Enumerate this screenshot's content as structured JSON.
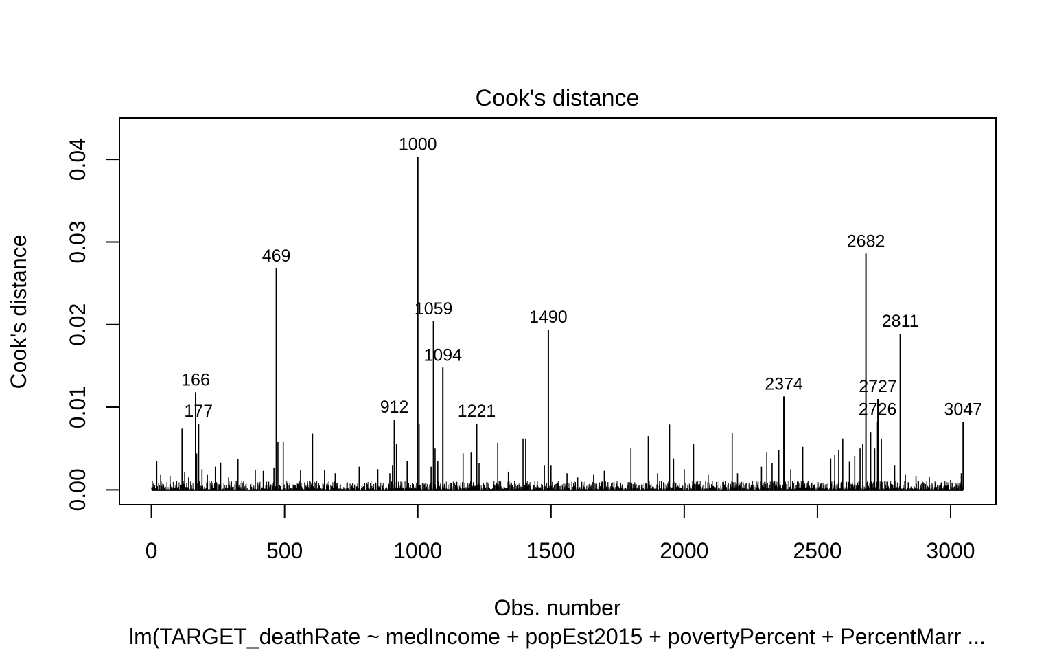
{
  "chart_data": {
    "type": "bar",
    "title": "Cook's distance",
    "xlabel": "Obs. number",
    "ylabel": "Cook's distance",
    "caption": "lm(TARGET_deathRate ~ medIncome + popEst2015 + povertyPercent + PercentMarr ...",
    "xlim": [
      -120,
      3170
    ],
    "ylim": [
      -0.0018,
      0.045
    ],
    "x_ticks": [
      0,
      500,
      1000,
      1500,
      2000,
      2500,
      3000
    ],
    "x_tick_labels": [
      "0",
      "500",
      "1000",
      "1500",
      "2000",
      "2500",
      "3000"
    ],
    "y_ticks": [
      0,
      0.01,
      0.02,
      0.03,
      0.04
    ],
    "y_tick_labels": [
      "0.00",
      "0.01",
      "0.02",
      "0.03",
      "0.04"
    ],
    "n_obs": 3047,
    "grid": false,
    "labeled_points": [
      {
        "label": "166",
        "x": 166,
        "y": 0.0118
      },
      {
        "label": "177",
        "x": 177,
        "y": 0.008
      },
      {
        "label": "469",
        "x": 469,
        "y": 0.0268
      },
      {
        "label": "912",
        "x": 912,
        "y": 0.0085
      },
      {
        "label": "1000",
        "x": 1000,
        "y": 0.0403
      },
      {
        "label": "1059",
        "x": 1059,
        "y": 0.0204
      },
      {
        "label": "1094",
        "x": 1094,
        "y": 0.0148
      },
      {
        "label": "1221",
        "x": 1221,
        "y": 0.008
      },
      {
        "label": "1490",
        "x": 1490,
        "y": 0.0194
      },
      {
        "label": "2374",
        "x": 2374,
        "y": 0.0113
      },
      {
        "label": "2682",
        "x": 2682,
        "y": 0.0286
      },
      {
        "label": "2726",
        "x": 2726,
        "y": 0.0082
      },
      {
        "label": "2727",
        "x": 2727,
        "y": 0.011
      },
      {
        "label": "2811",
        "x": 2811,
        "y": 0.0189
      },
      {
        "label": "3047",
        "x": 3047,
        "y": 0.0082
      }
    ],
    "other_spikes": [
      {
        "x": 20,
        "y": 0.0035
      },
      {
        "x": 35,
        "y": 0.0018
      },
      {
        "x": 70,
        "y": 0.0017
      },
      {
        "x": 115,
        "y": 0.0074
      },
      {
        "x": 125,
        "y": 0.0022
      },
      {
        "x": 140,
        "y": 0.0015
      },
      {
        "x": 170,
        "y": 0.0044
      },
      {
        "x": 190,
        "y": 0.0025
      },
      {
        "x": 210,
        "y": 0.0018
      },
      {
        "x": 240,
        "y": 0.0028
      },
      {
        "x": 260,
        "y": 0.0033
      },
      {
        "x": 290,
        "y": 0.0015
      },
      {
        "x": 325,
        "y": 0.0037
      },
      {
        "x": 390,
        "y": 0.0024
      },
      {
        "x": 420,
        "y": 0.0023
      },
      {
        "x": 460,
        "y": 0.0027
      },
      {
        "x": 475,
        "y": 0.0058
      },
      {
        "x": 495,
        "y": 0.0058
      },
      {
        "x": 560,
        "y": 0.0024
      },
      {
        "x": 605,
        "y": 0.0068
      },
      {
        "x": 650,
        "y": 0.0024
      },
      {
        "x": 690,
        "y": 0.002
      },
      {
        "x": 780,
        "y": 0.0028
      },
      {
        "x": 850,
        "y": 0.0025
      },
      {
        "x": 895,
        "y": 0.002
      },
      {
        "x": 905,
        "y": 0.003
      },
      {
        "x": 920,
        "y": 0.0056
      },
      {
        "x": 960,
        "y": 0.0035
      },
      {
        "x": 1005,
        "y": 0.008
      },
      {
        "x": 1050,
        "y": 0.0028
      },
      {
        "x": 1065,
        "y": 0.005
      },
      {
        "x": 1075,
        "y": 0.0035
      },
      {
        "x": 1170,
        "y": 0.0044
      },
      {
        "x": 1200,
        "y": 0.0045
      },
      {
        "x": 1230,
        "y": 0.0032
      },
      {
        "x": 1300,
        "y": 0.0057
      },
      {
        "x": 1340,
        "y": 0.0022
      },
      {
        "x": 1395,
        "y": 0.0062
      },
      {
        "x": 1405,
        "y": 0.0062
      },
      {
        "x": 1475,
        "y": 0.003
      },
      {
        "x": 1500,
        "y": 0.003
      },
      {
        "x": 1560,
        "y": 0.002
      },
      {
        "x": 1600,
        "y": 0.0015
      },
      {
        "x": 1660,
        "y": 0.0018
      },
      {
        "x": 1700,
        "y": 0.0023
      },
      {
        "x": 1800,
        "y": 0.0051
      },
      {
        "x": 1865,
        "y": 0.0065
      },
      {
        "x": 1900,
        "y": 0.002
      },
      {
        "x": 1945,
        "y": 0.0079
      },
      {
        "x": 1960,
        "y": 0.0038
      },
      {
        "x": 2000,
        "y": 0.0025
      },
      {
        "x": 2035,
        "y": 0.0056
      },
      {
        "x": 2090,
        "y": 0.0018
      },
      {
        "x": 2180,
        "y": 0.0069
      },
      {
        "x": 2200,
        "y": 0.002
      },
      {
        "x": 2290,
        "y": 0.0028
      },
      {
        "x": 2310,
        "y": 0.0045
      },
      {
        "x": 2330,
        "y": 0.0032
      },
      {
        "x": 2355,
        "y": 0.0048
      },
      {
        "x": 2400,
        "y": 0.0025
      },
      {
        "x": 2445,
        "y": 0.0052
      },
      {
        "x": 2550,
        "y": 0.0038
      },
      {
        "x": 2565,
        "y": 0.0042
      },
      {
        "x": 2580,
        "y": 0.0048
      },
      {
        "x": 2595,
        "y": 0.0062
      },
      {
        "x": 2620,
        "y": 0.0034
      },
      {
        "x": 2640,
        "y": 0.0041
      },
      {
        "x": 2660,
        "y": 0.005
      },
      {
        "x": 2670,
        "y": 0.0056
      },
      {
        "x": 2700,
        "y": 0.007
      },
      {
        "x": 2715,
        "y": 0.005
      },
      {
        "x": 2740,
        "y": 0.0062
      },
      {
        "x": 2790,
        "y": 0.003
      },
      {
        "x": 2830,
        "y": 0.0018
      },
      {
        "x": 2870,
        "y": 0.0017
      },
      {
        "x": 2920,
        "y": 0.0016
      },
      {
        "x": 3000,
        "y": 0.0012
      },
      {
        "x": 3040,
        "y": 0.002
      }
    ]
  }
}
